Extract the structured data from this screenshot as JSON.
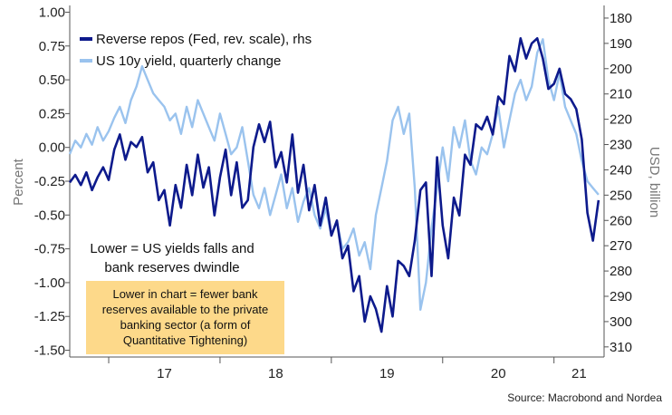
{
  "chart_data": {
    "type": "line",
    "source": "Source: Macrobond and Nordea",
    "ylabel_left": "Percent",
    "ylabel_right": "USD, billion",
    "ylim_left": [
      -1.55,
      1.05
    ],
    "ylim_right": [
      314,
      175
    ],
    "right_axis_reversed": true,
    "grid": false,
    "legend_position": "top-left",
    "y_ticks_left": [
      "1.00",
      "0.75",
      "0.50",
      "0.25",
      "0.00",
      "-0.25",
      "-0.50",
      "-0.75",
      "-1.00",
      "-1.25",
      "-1.50"
    ],
    "y_ticks_right": [
      "180",
      "190",
      "200",
      "210",
      "220",
      "230",
      "240",
      "250",
      "260",
      "270",
      "280",
      "290",
      "300",
      "310"
    ],
    "x_ticks": [
      "17",
      "18",
      "19",
      "20",
      "21"
    ],
    "xlim": [
      2016.65,
      2021.45
    ],
    "annotation": [
      "Lower = US yields falls and",
      "bank reserves dwindle"
    ],
    "callout_box": [
      "Lower in chart = fewer bank",
      "reserves available to the private",
      "banking sector (a form of",
      "Quantitative Tightening)"
    ],
    "series": [
      {
        "name": "Reverse repos (Fed, rev. scale), rhs",
        "axis": "right",
        "color": "#0d1a8c",
        "x": [
          2016.65,
          2016.7,
          2016.75,
          2016.8,
          2016.85,
          2016.9,
          2016.95,
          2017.0,
          2017.05,
          2017.1,
          2017.15,
          2017.2,
          2017.25,
          2017.3,
          2017.35,
          2017.4,
          2017.45,
          2017.5,
          2017.55,
          2017.6,
          2017.65,
          2017.7,
          2017.75,
          2017.8,
          2017.85,
          2017.9,
          2017.95,
          2018.0,
          2018.05,
          2018.1,
          2018.15,
          2018.2,
          2018.25,
          2018.3,
          2018.35,
          2018.4,
          2018.45,
          2018.5,
          2018.55,
          2018.6,
          2018.65,
          2018.7,
          2018.75,
          2018.8,
          2018.85,
          2018.9,
          2018.95,
          2019.0,
          2019.05,
          2019.1,
          2019.15,
          2019.2,
          2019.25,
          2019.3,
          2019.35,
          2019.4,
          2019.45,
          2019.5,
          2019.55,
          2019.6,
          2019.65,
          2019.7,
          2019.75,
          2019.8,
          2019.85,
          2019.9,
          2019.95,
          2020.0,
          2020.05,
          2020.1,
          2020.15,
          2020.2,
          2020.25,
          2020.3,
          2020.35,
          2020.4,
          2020.45,
          2020.5,
          2020.55,
          2020.6,
          2020.65,
          2020.7,
          2020.75,
          2020.8,
          2020.85,
          2020.9,
          2020.95,
          2021.0,
          2021.05,
          2021.1,
          2021.15,
          2021.2,
          2021.25,
          2021.3,
          2021.35,
          2021.4
        ],
        "values": [
          245,
          242,
          246,
          241,
          248,
          243,
          239,
          244,
          232,
          226,
          236,
          229,
          231,
          227,
          241,
          237,
          252,
          248,
          262,
          246,
          255,
          238,
          250,
          234,
          247,
          239,
          258,
          243,
          232,
          250,
          237,
          255,
          252,
          231,
          222,
          229,
          221,
          239,
          233,
          245,
          226,
          249,
          238,
          256,
          246,
          262,
          251,
          266,
          260,
          275,
          270,
          288,
          282,
          300,
          290,
          295,
          304,
          286,
          298,
          276,
          278,
          282,
          268,
          248,
          245,
          282,
          235,
          262,
          275,
          251,
          258,
          234,
          238,
          222,
          224,
          219,
          226,
          211,
          214,
          195,
          201,
          188,
          196,
          190,
          188,
          196,
          208,
          206,
          200,
          210,
          212,
          216,
          228,
          257,
          268,
          252
        ]
      },
      {
        "name": "US 10y yield, quarterly change",
        "axis": "left",
        "color": "#9ac3ee",
        "x": [
          2016.65,
          2016.7,
          2016.75,
          2016.8,
          2016.85,
          2016.9,
          2016.95,
          2017.0,
          2017.05,
          2017.1,
          2017.15,
          2017.2,
          2017.25,
          2017.3,
          2017.35,
          2017.4,
          2017.45,
          2017.5,
          2017.55,
          2017.6,
          2017.65,
          2017.7,
          2017.75,
          2017.8,
          2017.85,
          2017.9,
          2017.95,
          2018.0,
          2018.05,
          2018.1,
          2018.15,
          2018.2,
          2018.25,
          2018.3,
          2018.35,
          2018.4,
          2018.45,
          2018.5,
          2018.55,
          2018.6,
          2018.65,
          2018.7,
          2018.75,
          2018.8,
          2018.85,
          2018.9,
          2018.95,
          2019.0,
          2019.05,
          2019.1,
          2019.15,
          2019.2,
          2019.25,
          2019.3,
          2019.35,
          2019.4,
          2019.45,
          2019.5,
          2019.55,
          2019.6,
          2019.65,
          2019.7,
          2019.75,
          2019.8,
          2019.85,
          2019.9,
          2019.95,
          2020.0,
          2020.05,
          2020.1,
          2020.15,
          2020.2,
          2020.25,
          2020.3,
          2020.35,
          2020.4,
          2020.45,
          2020.5,
          2020.55,
          2020.6,
          2020.65,
          2020.7,
          2020.75,
          2020.8,
          2020.85,
          2020.9,
          2020.95,
          2021.0,
          2021.05,
          2021.1,
          2021.15,
          2021.2,
          2021.25,
          2021.3,
          2021.35,
          2021.4
        ],
        "values": [
          -0.05,
          0.05,
          0.0,
          0.1,
          0.02,
          0.15,
          0.05,
          0.12,
          0.22,
          0.3,
          0.18,
          0.35,
          0.45,
          0.6,
          0.5,
          0.4,
          0.35,
          0.3,
          0.2,
          0.25,
          0.1,
          0.3,
          0.15,
          0.35,
          0.25,
          0.15,
          0.05,
          0.25,
          0.1,
          -0.05,
          0.0,
          0.15,
          -0.1,
          -0.35,
          -0.45,
          -0.3,
          -0.5,
          -0.35,
          -0.2,
          -0.45,
          -0.3,
          -0.55,
          -0.4,
          -0.3,
          -0.5,
          -0.6,
          -0.45,
          -0.65,
          -0.55,
          -0.75,
          -0.7,
          -0.6,
          -0.8,
          -0.7,
          -0.9,
          -0.5,
          -0.3,
          -0.1,
          0.2,
          0.3,
          0.1,
          0.25,
          -0.3,
          -1.2,
          -1.0,
          -0.6,
          -0.3,
          0.0,
          -0.25,
          0.15,
          0.0,
          0.2,
          -0.1,
          -0.2,
          0.0,
          -0.05,
          0.1,
          0.3,
          0.0,
          0.2,
          0.4,
          0.5,
          0.35,
          0.45,
          0.7,
          0.8,
          0.5,
          0.35,
          0.55,
          0.3,
          0.2,
          0.1,
          -0.1,
          -0.25,
          -0.3,
          -0.35
        ]
      }
    ]
  }
}
